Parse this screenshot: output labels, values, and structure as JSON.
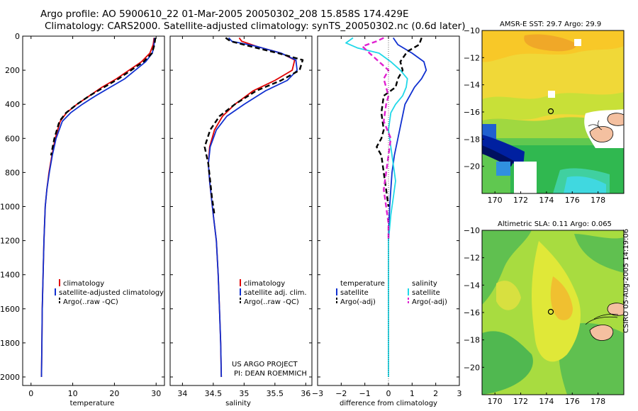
{
  "header": {
    "line1": "Argo profile: AO 5900610_22 01-Mar-2005 20050302_208 15.858S 174.429E",
    "line2": "Climatology: CARS2000. Satellite-adjusted climatology: synTS_20050302.nc (0.6d later)"
  },
  "stamp": "CSIRO 05-Aug-2005 14:19:06",
  "credits": {
    "line1": "US ARGO PROJECT",
    "line2": "PI: DEAN ROEMMICH"
  },
  "colors": {
    "clim": "#e00000",
    "sat": "#1030d0",
    "argo": "#000000",
    "sal_sat": "#20d8e8",
    "sal_argo": "#e020d0"
  },
  "chart_data": [
    {
      "type": "line",
      "id": "temperature",
      "xlabel": "temperature",
      "ylabel": "",
      "xlim": [
        -2,
        32
      ],
      "ylim": [
        0,
        2050
      ],
      "xticks": [
        0,
        10,
        20,
        30
      ],
      "yticks": [
        0,
        200,
        400,
        600,
        800,
        1000,
        1200,
        1400,
        1600,
        1800,
        2000
      ],
      "legend": [
        "climatology",
        "satellite-adjusted climatology",
        "Argo(..raw -QC)"
      ],
      "series": [
        {
          "name": "climatology",
          "color": "clim",
          "x": [
            29.5,
            29.3,
            28.5,
            26.5,
            23.5,
            20.5,
            17.0,
            14.0,
            11.0,
            8.5,
            7.0,
            5.8,
            5.0,
            4.3,
            3.8,
            3.4,
            3.1,
            2.9,
            2.7,
            2.6,
            2.5
          ],
          "y": [
            10,
            50,
            100,
            150,
            200,
            250,
            300,
            350,
            400,
            450,
            500,
            600,
            700,
            800,
            900,
            1000,
            1200,
            1400,
            1600,
            1800,
            2000
          ]
        },
        {
          "name": "satellite-adjusted climatology",
          "color": "sat",
          "x": [
            29.6,
            29.5,
            29.1,
            27.5,
            25.0,
            22.5,
            19.0,
            15.5,
            12.3,
            9.5,
            7.5,
            6.0,
            5.1,
            4.4,
            3.8,
            3.4,
            3.1,
            2.9,
            2.7,
            2.6,
            2.5
          ],
          "y": [
            10,
            50,
            100,
            150,
            200,
            250,
            300,
            350,
            400,
            450,
            500,
            600,
            700,
            800,
            900,
            1000,
            1200,
            1400,
            1600,
            1800,
            2000
          ]
        },
        {
          "name": "Argo(..raw -QC)",
          "color": "argo",
          "dashed": true,
          "x": [
            29.8,
            29.6,
            29.0,
            27.0,
            24.0,
            21.0,
            17.5,
            14.0,
            11.0,
            8.4,
            6.8,
            5.6,
            4.8
          ],
          "y": [
            10,
            50,
            100,
            150,
            200,
            250,
            300,
            350,
            400,
            450,
            500,
            600,
            700
          ]
        }
      ]
    },
    {
      "type": "line",
      "id": "salinity",
      "xlabel": "salinity",
      "xlim": [
        33.8,
        36.1
      ],
      "ylim": [
        0,
        2050
      ],
      "xticks": [
        34,
        34.5,
        35,
        35.5,
        36
      ],
      "yticks": [
        0,
        200,
        400,
        600,
        800,
        1000,
        1200,
        1400,
        1600,
        1800,
        2000
      ],
      "legend": [
        "climatology",
        "satellite adj. clim.",
        "Argo(..raw -QC)"
      ],
      "series": [
        {
          "name": "climatology",
          "color": "clim",
          "x": [
            34.92,
            34.96,
            35.2,
            35.6,
            35.82,
            35.78,
            35.5,
            35.15,
            34.85,
            34.65,
            34.52,
            34.44,
            34.42,
            34.44,
            34.47,
            34.5,
            34.55,
            34.58,
            34.6,
            34.62,
            34.63
          ],
          "y": [
            10,
            30,
            60,
            100,
            140,
            200,
            260,
            320,
            400,
            470,
            550,
            650,
            750,
            850,
            950,
            1050,
            1200,
            1400,
            1600,
            1800,
            2000
          ]
        },
        {
          "name": "satellite adj. clim.",
          "color": "sat",
          "x": [
            34.75,
            34.8,
            35.2,
            35.6,
            35.84,
            35.86,
            35.7,
            35.35,
            35.0,
            34.72,
            34.55,
            34.45,
            34.42,
            34.44,
            34.47,
            34.5,
            34.55,
            34.58,
            34.6,
            34.62,
            34.63
          ],
          "y": [
            10,
            30,
            60,
            100,
            140,
            200,
            260,
            320,
            400,
            470,
            550,
            650,
            750,
            850,
            950,
            1050,
            1200,
            1400,
            1600,
            1800,
            2000
          ]
        },
        {
          "name": "Argo(..raw -QC)",
          "color": "argo",
          "dashed": true,
          "x": [
            34.7,
            34.78,
            35.1,
            35.55,
            35.95,
            35.9,
            35.6,
            35.2,
            34.85,
            34.6,
            34.45,
            34.36,
            34.42,
            34.45,
            34.48,
            34.52
          ],
          "y": [
            10,
            30,
            60,
            100,
            140,
            200,
            260,
            320,
            400,
            470,
            550,
            650,
            750,
            850,
            950,
            1050
          ]
        }
      ]
    },
    {
      "type": "line",
      "id": "difference",
      "xlabel": "difference from climatology",
      "xlim": [
        -3,
        3
      ],
      "ylim": [
        0,
        2050
      ],
      "xticks": [
        -3,
        -2,
        -1,
        0,
        1,
        2,
        3
      ],
      "yticks": [
        0,
        200,
        400,
        600,
        800,
        1000,
        1200,
        1400,
        1600,
        1800,
        2000
      ],
      "legend_temperature": [
        "temperature",
        "satellite",
        "Argo(-adj)"
      ],
      "legend_salinity": [
        "salinity",
        "satellite",
        "Argo(-adj)"
      ],
      "series": [
        {
          "name": "temperature satellite",
          "color": "sat",
          "x": [
            0.2,
            0.4,
            1.0,
            1.5,
            1.6,
            1.4,
            1.1,
            0.9,
            0.7,
            0.55,
            0.4,
            0.25,
            0.15,
            0.1,
            0.05,
            0.02,
            0.0
          ],
          "y": [
            10,
            50,
            100,
            150,
            200,
            250,
            300,
            350,
            400,
            500,
            600,
            700,
            800,
            900,
            1000,
            1100,
            1200
          ]
        },
        {
          "name": "temperature Argo(-adj)",
          "color": "argo",
          "dashed": true,
          "x": [
            1.4,
            1.3,
            0.8,
            0.5,
            0.6,
            0.4,
            0.3,
            -0.2,
            -0.3,
            -0.2,
            -0.3,
            -0.5,
            -0.3,
            -0.2,
            -0.1,
            0.0
          ],
          "y": [
            10,
            50,
            90,
            150,
            200,
            250,
            300,
            350,
            450,
            550,
            600,
            650,
            700,
            800,
            900,
            1000
          ]
        },
        {
          "name": "salinity satellite",
          "color": "sal_sat",
          "x": [
            -1.5,
            -1.8,
            -1.3,
            -0.4,
            0.1,
            0.5,
            0.8,
            0.75,
            0.6,
            0.3,
            0.1,
            0.0,
            0.1,
            0.2,
            0.3,
            0.2,
            0.1,
            0.0,
            0.0,
            0.0,
            0.0,
            0.0
          ],
          "y": [
            10,
            40,
            70,
            100,
            150,
            200,
            250,
            300,
            350,
            400,
            450,
            550,
            650,
            750,
            850,
            950,
            1050,
            1200,
            1400,
            1600,
            1800,
            2000
          ]
        },
        {
          "name": "salinity Argo(-adj)",
          "color": "sal_argo",
          "dashed": true,
          "x": [
            -0.2,
            -0.5,
            -1.1,
            -0.8,
            -0.4,
            0.0,
            -0.2,
            -0.1,
            0.0,
            -0.1,
            -0.2,
            0.1,
            0.0,
            -0.1,
            -0.2,
            -0.1,
            0.0,
            0.0
          ],
          "y": [
            10,
            30,
            60,
            100,
            150,
            200,
            250,
            300,
            350,
            400,
            500,
            600,
            700,
            800,
            900,
            1000,
            1100,
            1200
          ]
        }
      ]
    },
    {
      "type": "heatmap",
      "id": "sst",
      "title": "AMSR-E SST: 29.7 Argo: 29.9",
      "xlim": [
        169,
        180
      ],
      "ylim": [
        -22,
        -10
      ],
      "xticks": [
        170,
        172,
        174,
        176,
        178
      ],
      "yticks": [
        -10,
        -12,
        -14,
        -16,
        -18,
        -20
      ],
      "float": {
        "lon": 174.429,
        "lat": -15.858
      }
    },
    {
      "type": "heatmap",
      "id": "sla",
      "title": "Altimetric SLA: 0.11 Argo: 0.065",
      "xlim": [
        169,
        180
      ],
      "ylim": [
        -22,
        -10
      ],
      "xticks": [
        170,
        172,
        174,
        176,
        178
      ],
      "yticks": [
        -10,
        -12,
        -14,
        -16,
        -18,
        -20
      ],
      "float": {
        "lon": 174.429,
        "lat": -15.858
      }
    }
  ]
}
